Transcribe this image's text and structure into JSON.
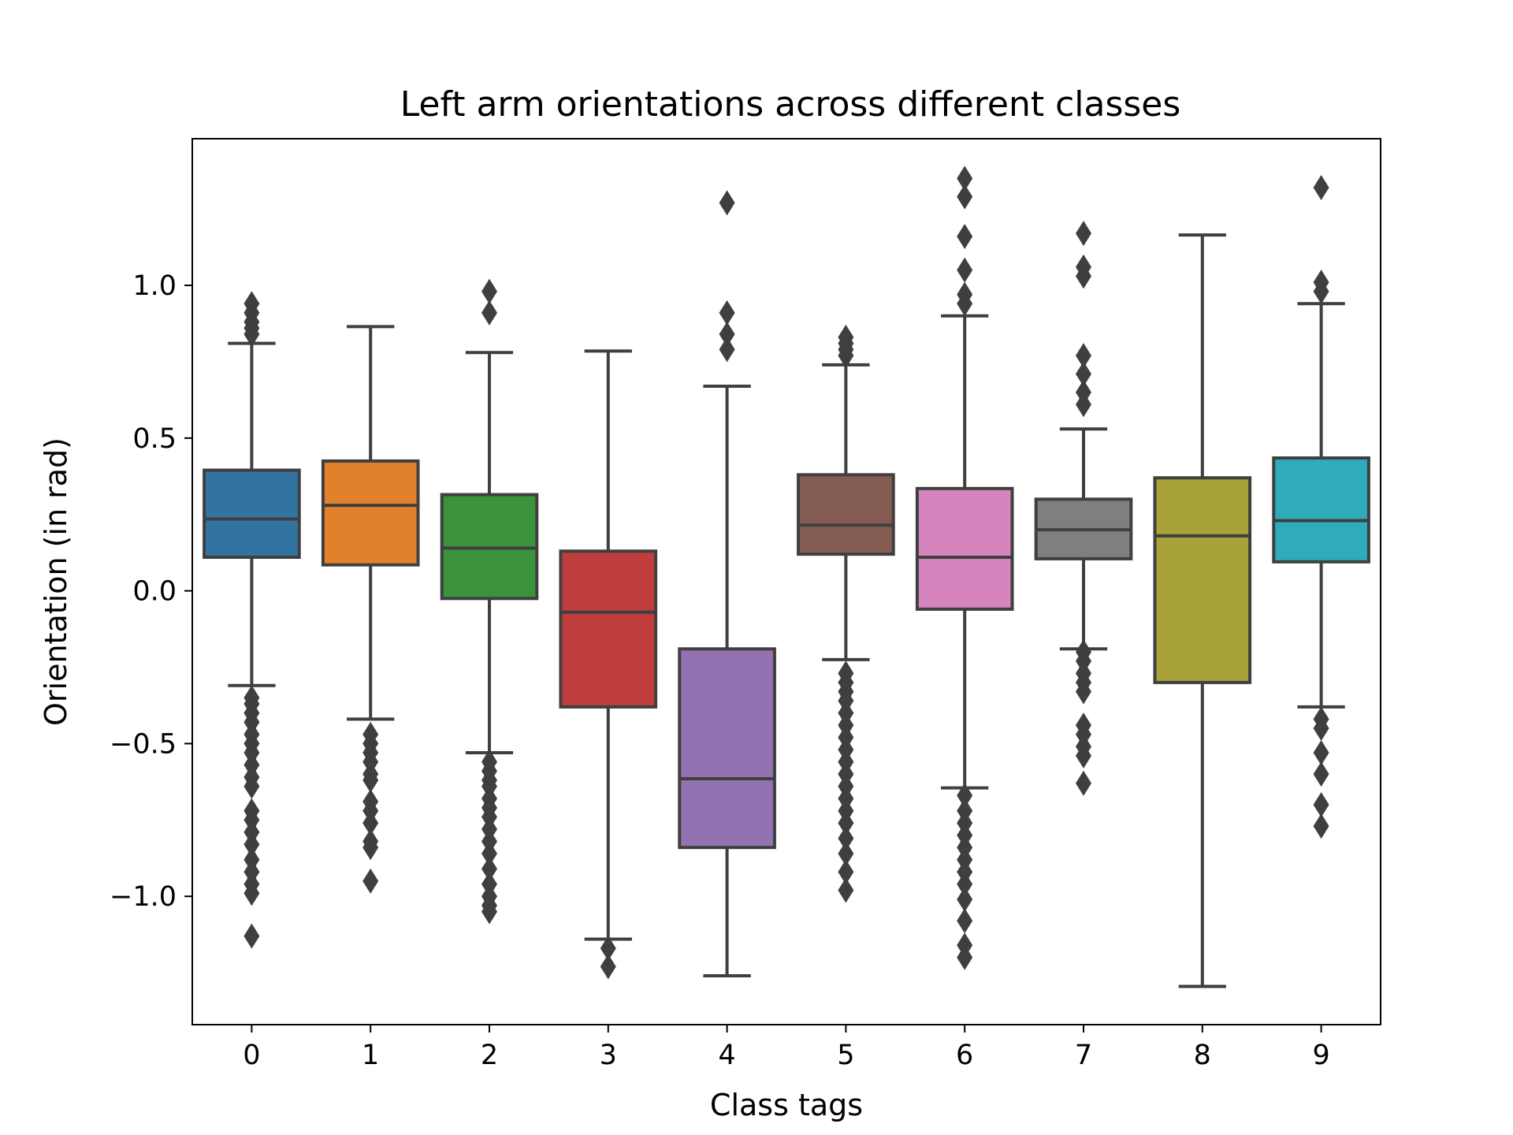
{
  "chart_data": {
    "type": "boxplot",
    "title": "Left arm orientations across different classes",
    "xlabel": "Class tags",
    "ylabel": "Orientation (in rad)",
    "ylim": [
      -1.42,
      1.48
    ],
    "yticks": [
      {
        "value": 1.0,
        "label": "1.0"
      },
      {
        "value": 0.5,
        "label": "0.5"
      },
      {
        "value": 0.0,
        "label": "0.0"
      },
      {
        "value": -0.5,
        "label": "−0.5"
      },
      {
        "value": -1.0,
        "label": "−1.0"
      }
    ],
    "grid": false,
    "legend": "none",
    "box_edge_color": "#3f3f3f",
    "categories": [
      "0",
      "1",
      "2",
      "3",
      "4",
      "5",
      "6",
      "7",
      "8",
      "9"
    ],
    "boxes": [
      {
        "category": "0",
        "color": "#3274a1",
        "whisker_low": -0.31,
        "q1": 0.11,
        "median": 0.235,
        "q3": 0.395,
        "whisker_high": 0.81,
        "outliers": [
          0.94,
          0.91,
          0.88,
          0.86,
          0.84,
          -0.35,
          -0.37,
          -0.4,
          -0.43,
          -0.47,
          -0.5,
          -0.53,
          -0.57,
          -0.61,
          -0.64,
          -0.72,
          -0.75,
          -0.79,
          -0.83,
          -0.88,
          -0.92,
          -0.96,
          -0.99,
          -1.13
        ]
      },
      {
        "category": "1",
        "color": "#e1812c",
        "whisker_low": -0.42,
        "q1": 0.085,
        "median": 0.28,
        "q3": 0.425,
        "whisker_high": 0.865,
        "outliers": [
          -0.47,
          -0.5,
          -0.53,
          -0.56,
          -0.6,
          -0.62,
          -0.69,
          -0.72,
          -0.76,
          -0.82,
          -0.84,
          -0.95
        ]
      },
      {
        "category": "2",
        "color": "#3a923a",
        "whisker_low": -0.53,
        "q1": -0.025,
        "median": 0.14,
        "q3": 0.315,
        "whisker_high": 0.78,
        "outliers": [
          0.98,
          0.91,
          -0.56,
          -0.59,
          -0.62,
          -0.64,
          -0.68,
          -0.71,
          -0.74,
          -0.78,
          -0.82,
          -0.86,
          -0.91,
          -0.96,
          -1.0,
          -1.03,
          -1.05
        ]
      },
      {
        "category": "3",
        "color": "#c03d3e",
        "whisker_low": -1.14,
        "q1": -0.38,
        "median": -0.07,
        "q3": 0.13,
        "whisker_high": 0.785,
        "outliers": [
          -1.17,
          -1.23
        ]
      },
      {
        "category": "4",
        "color": "#9372b2",
        "whisker_low": -1.26,
        "q1": -0.84,
        "median": -0.615,
        "q3": -0.19,
        "whisker_high": 0.67,
        "outliers": [
          1.27,
          0.91,
          0.84,
          0.79
        ]
      },
      {
        "category": "5",
        "color": "#845b53",
        "whisker_low": -0.225,
        "q1": 0.12,
        "median": 0.215,
        "q3": 0.38,
        "whisker_high": 0.74,
        "outliers": [
          0.83,
          0.81,
          0.79,
          0.77,
          -0.27,
          -0.3,
          -0.33,
          -0.36,
          -0.4,
          -0.44,
          -0.48,
          -0.52,
          -0.56,
          -0.6,
          -0.64,
          -0.68,
          -0.72,
          -0.76,
          -0.81,
          -0.86,
          -0.92,
          -0.98
        ]
      },
      {
        "category": "6",
        "color": "#d684bd",
        "whisker_low": -0.645,
        "q1": -0.06,
        "median": 0.11,
        "q3": 0.335,
        "whisker_high": 0.9,
        "outliers": [
          1.35,
          1.29,
          1.16,
          1.05,
          0.97,
          0.94,
          -0.67,
          -0.72,
          -0.76,
          -0.8,
          -0.84,
          -0.88,
          -0.92,
          -0.96,
          -1.01,
          -1.08,
          -1.16,
          -1.2
        ]
      },
      {
        "category": "7",
        "color": "#7f7f7f",
        "whisker_low": -0.19,
        "q1": 0.105,
        "median": 0.2,
        "q3": 0.3,
        "whisker_high": 0.53,
        "outliers": [
          1.17,
          1.06,
          1.03,
          0.77,
          0.71,
          0.65,
          0.61,
          -0.2,
          -0.23,
          -0.27,
          -0.3,
          -0.33,
          -0.44,
          -0.47,
          -0.51,
          -0.54,
          -0.63
        ]
      },
      {
        "category": "8",
        "color": "#a9a13a",
        "whisker_low": -1.295,
        "q1": -0.3,
        "median": 0.18,
        "q3": 0.37,
        "whisker_high": 1.165,
        "outliers": []
      },
      {
        "category": "9",
        "color": "#2fabbc",
        "whisker_low": -0.38,
        "q1": 0.095,
        "median": 0.23,
        "q3": 0.435,
        "whisker_high": 0.94,
        "outliers": [
          1.32,
          1.01,
          0.98,
          -0.42,
          -0.45,
          -0.53,
          -0.6,
          -0.7,
          -0.77
        ]
      }
    ]
  }
}
